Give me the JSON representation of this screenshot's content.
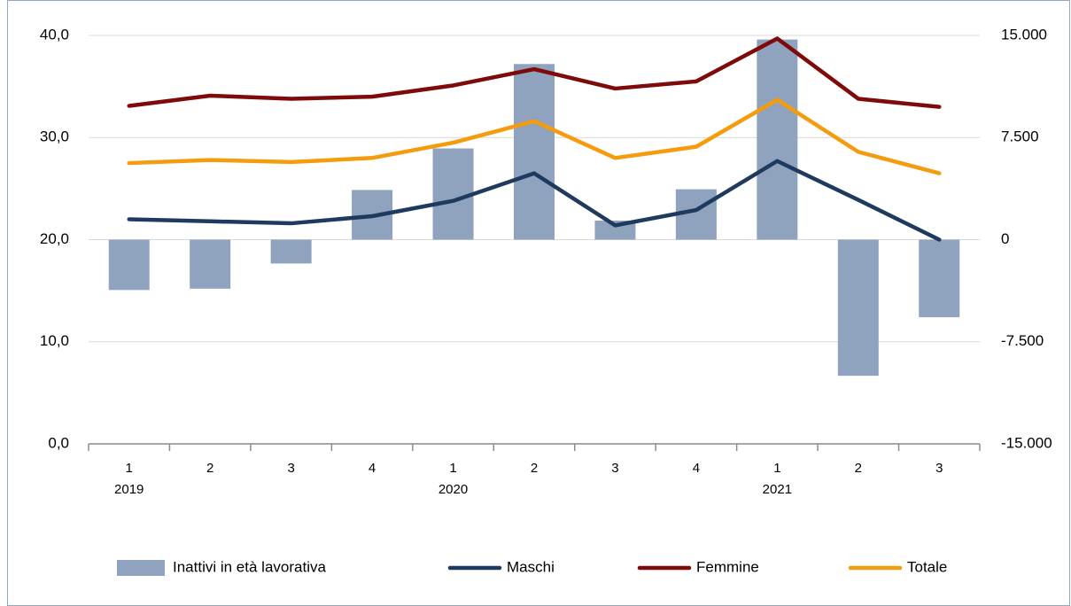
{
  "chart_data": {
    "type": "combo",
    "categories": [
      "1",
      "2",
      "3",
      "4",
      "1",
      "2",
      "3",
      "4",
      "1",
      "2",
      "3"
    ],
    "years": [
      "2019",
      null,
      null,
      null,
      "2020",
      null,
      null,
      null,
      "2021",
      null,
      null
    ],
    "series": [
      {
        "name": "Inattivi in età lavorativa",
        "type": "bar",
        "axis": "y2",
        "color": "#8fa3bf",
        "values": [
          -3700,
          -3600,
          -1750,
          3650,
          6700,
          12900,
          1400,
          3700,
          14700,
          -10000,
          -5700
        ]
      },
      {
        "name": "Maschi",
        "type": "line",
        "color": "#1f3a5f",
        "values": [
          22.0,
          21.8,
          21.6,
          22.3,
          23.8,
          26.5,
          21.4,
          22.9,
          27.7,
          23.9,
          20.0
        ]
      },
      {
        "name": "Femmine",
        "type": "line",
        "color": "#7f0a0a",
        "values": [
          33.1,
          34.1,
          33.8,
          34.0,
          35.1,
          36.7,
          34.8,
          35.5,
          39.7,
          33.8,
          33.0
        ]
      },
      {
        "name": "Totale",
        "type": "line",
        "color": "#f59b0e",
        "values": [
          27.5,
          27.8,
          27.6,
          28.0,
          29.5,
          31.6,
          28.0,
          29.1,
          33.7,
          28.6,
          26.5
        ]
      }
    ],
    "ylim": [
      0,
      40
    ],
    "yticks": [
      {
        "value": 0,
        "label": "0,0"
      },
      {
        "value": 10,
        "label": "10,0"
      },
      {
        "value": 20,
        "label": "20,0"
      },
      {
        "value": 30,
        "label": "30,0"
      },
      {
        "value": 40,
        "label": "40,0"
      }
    ],
    "y2lim": [
      -15000,
      15000
    ],
    "y2ticks": [
      {
        "value": -15000,
        "label": "-15.000"
      },
      {
        "value": -7500,
        "label": "-7.500"
      },
      0,
      {
        "value": 7500,
        "label": "7.500"
      },
      {
        "value": 15000,
        "label": "15.000"
      }
    ],
    "legend": "bottom"
  }
}
